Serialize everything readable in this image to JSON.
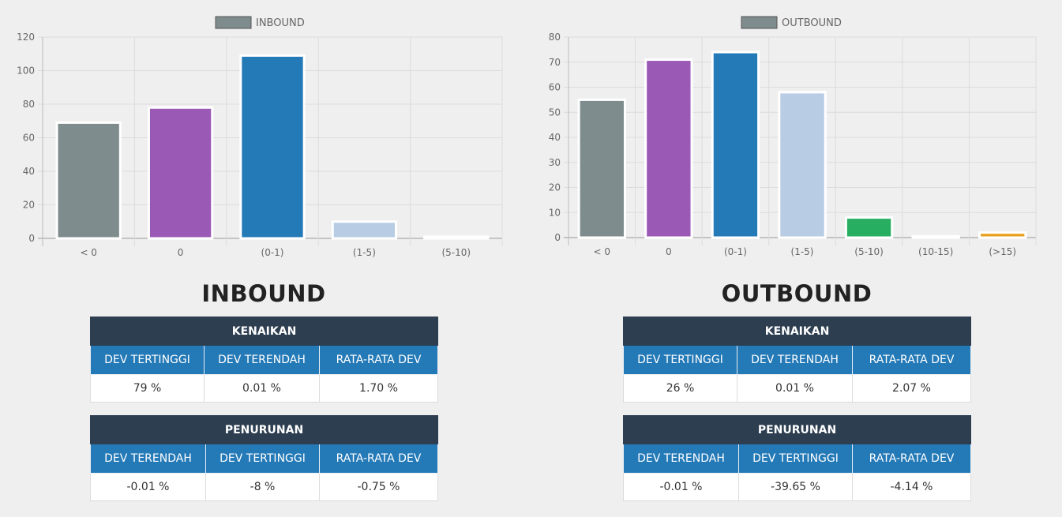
{
  "charts": [
    {
      "id": "inbound",
      "type": "bar",
      "legend_label": "INBOUND",
      "legend_color": "#7f8c8d",
      "categories": [
        "< 0",
        "0",
        "(0-1)",
        "(1-5)",
        "(5-10)"
      ],
      "values": [
        69,
        78,
        109,
        10,
        1
      ],
      "colors": [
        "#7f8c8d",
        "#9b59b6",
        "#2479b7",
        "#b8cce4",
        "#76c7b7"
      ],
      "ylim": [
        0,
        120
      ],
      "yticks": [
        0,
        20,
        40,
        60,
        80,
        100,
        120
      ]
    },
    {
      "id": "outbound",
      "type": "bar",
      "legend_label": "OUTBOUND",
      "legend_color": "#7f8c8d",
      "categories": [
        "< 0",
        "0",
        "(0-1)",
        "(1-5)",
        "(5-10)",
        "(10-15)",
        "(>15)"
      ],
      "values": [
        55,
        71,
        74,
        58,
        8,
        0.5,
        2
      ],
      "colors": [
        "#7f8c8d",
        "#9b59b6",
        "#2479b7",
        "#b8cce4",
        "#27ae60",
        "#f5f0e1",
        "#e8a020"
      ],
      "ylim": [
        0,
        80
      ],
      "yticks": [
        0,
        10,
        20,
        30,
        40,
        50,
        60,
        70,
        80
      ]
    }
  ],
  "inbound": {
    "title": "INBOUND",
    "kenaikan": {
      "header": "KENAIKAN",
      "columns": [
        "DEV TERTINGGI",
        "DEV TERENDAH",
        "RATA-RATA DEV"
      ],
      "values": [
        "79 %",
        "0.01 %",
        "1.70 %"
      ]
    },
    "penurunan": {
      "header": "PENURUNAN",
      "columns": [
        "DEV TERENDAH",
        "DEV TERTINGGI",
        "RATA-RATA DEV"
      ],
      "values": [
        "-0.01 %",
        "-8 %",
        "-0.75 %"
      ]
    }
  },
  "outbound": {
    "title": "OUTBOUND",
    "kenaikan": {
      "header": "KENAIKAN",
      "columns": [
        "DEV TERTINGGI",
        "DEV TERENDAH",
        "RATA-RATA DEV"
      ],
      "values": [
        "26 %",
        "0.01 %",
        "2.07 %"
      ]
    },
    "penurunan": {
      "header": "PENURUNAN",
      "columns": [
        "DEV TERENDAH",
        "DEV TERTINGGI",
        "RATA-RATA DEV"
      ],
      "values": [
        "-0.01 %",
        "-39.65 %",
        "-4.14 %"
      ]
    }
  }
}
